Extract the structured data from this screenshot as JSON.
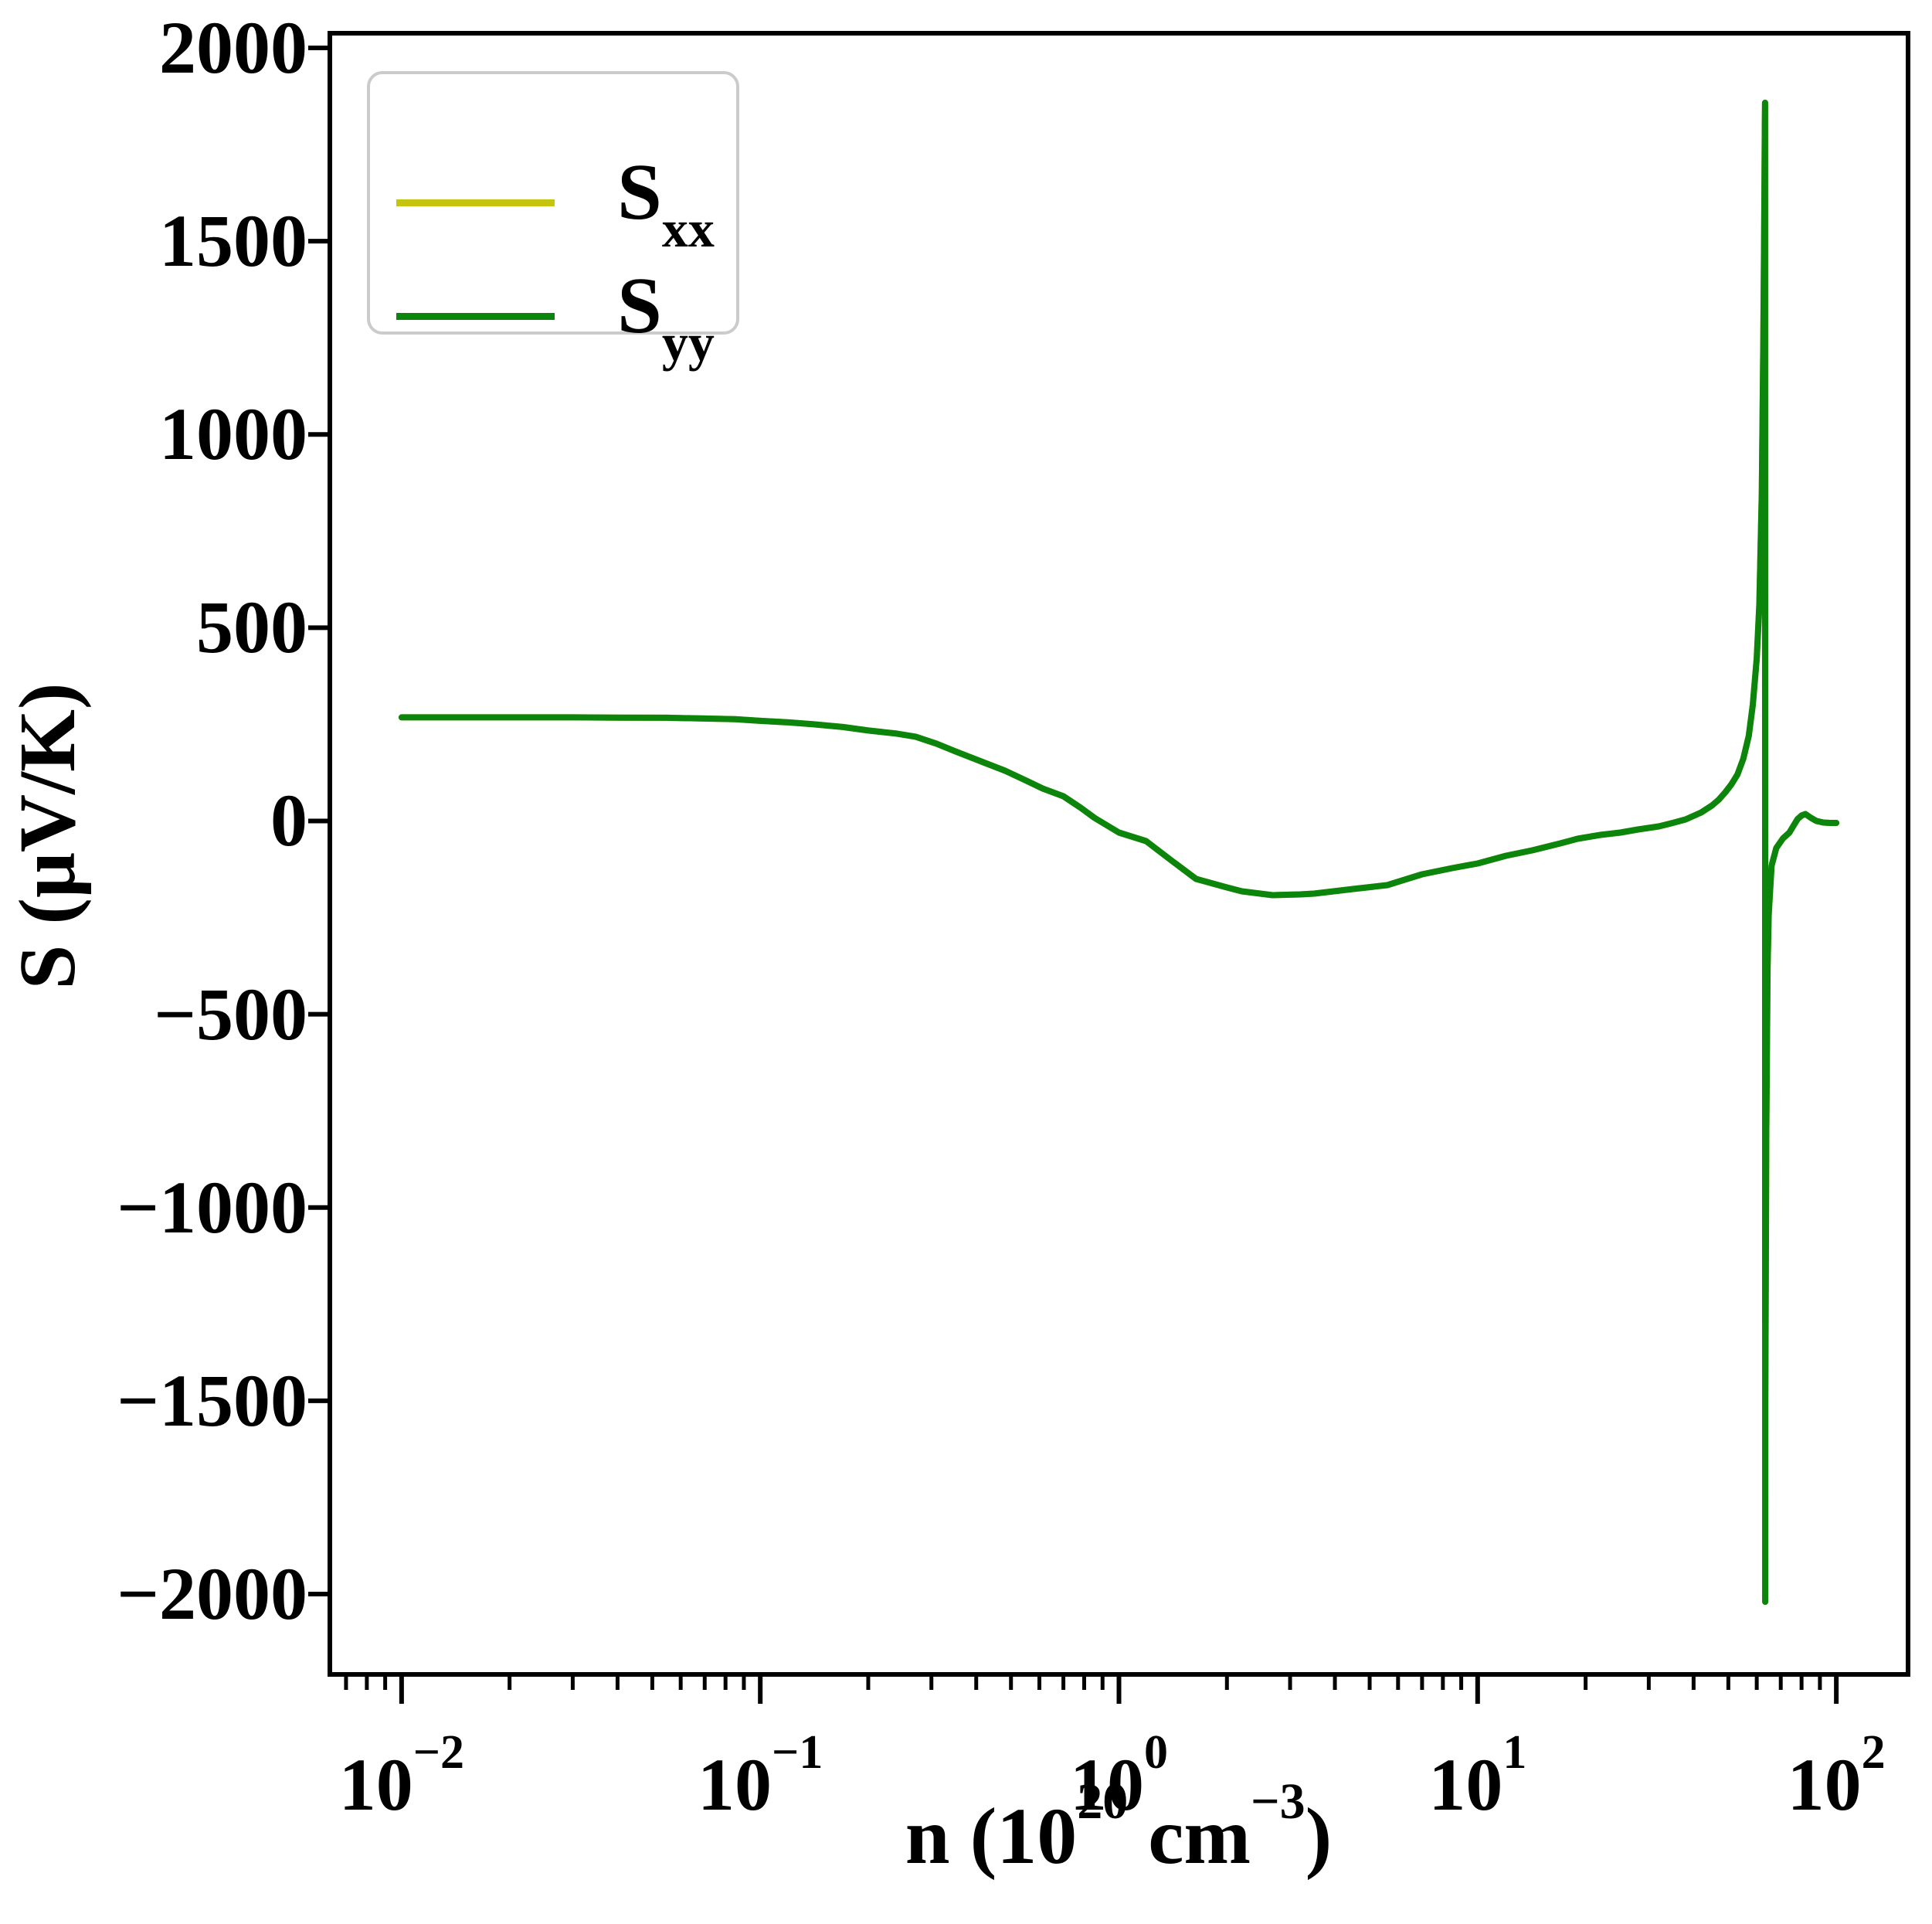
{
  "chart_data": {
    "type": "line",
    "title": "",
    "x_scale": "log",
    "xlim_log10": [
      -2.2,
      2.2
    ],
    "ylim": [
      -2208,
      2038
    ],
    "grid": false,
    "legend_position": "upper-left",
    "xlabel": {
      "prefix": "n (10",
      "sup1": "20",
      "mid": "cm",
      "sup2": "−3",
      "suffix": ")"
    },
    "ylabel": {
      "text": "S (μV/K)"
    },
    "x_ticks": [
      {
        "base": "10",
        "exp": "−2",
        "value": 0.01
      },
      {
        "base": "10",
        "exp": "−1",
        "value": 0.1
      },
      {
        "base": "10",
        "exp": "0",
        "value": 1
      },
      {
        "base": "10",
        "exp": "1",
        "value": 10
      },
      {
        "base": "10",
        "exp": "2",
        "value": 100
      }
    ],
    "x_minor_decades": [
      -3,
      -2,
      -1,
      0,
      1,
      2
    ],
    "y_ticks": [
      {
        "label": "2000",
        "value": 2000
      },
      {
        "label": "1500",
        "value": 1500
      },
      {
        "label": "1000",
        "value": 1000
      },
      {
        "label": "500",
        "value": 500
      },
      {
        "label": "0",
        "value": 0
      },
      {
        "label": "−500",
        "value": -500
      },
      {
        "label": "−1000",
        "value": -1000
      },
      {
        "label": "−1500",
        "value": -1500
      },
      {
        "label": "−2000",
        "value": -2000
      }
    ],
    "legend": [
      {
        "main": "S",
        "sub": "xx",
        "color": "#c4c411"
      },
      {
        "main": "S",
        "sub": "yy",
        "color": "#0c850c"
      }
    ],
    "series": [
      {
        "name": "Sxx",
        "color": "#c4c411",
        "note": "identical to Syy, completely hidden beneath it",
        "x": [
          0.01,
          0.013,
          0.017,
          0.022,
          0.03,
          0.04,
          0.055,
          0.07,
          0.085,
          0.1,
          0.12,
          0.141,
          0.17,
          0.2,
          0.24,
          0.271,
          0.31,
          0.35,
          0.41,
          0.481,
          0.55,
          0.613,
          0.7,
          0.78,
          0.855,
          1.0,
          1.19,
          1.4,
          1.64,
          2.0,
          2.2,
          2.68,
          3.2,
          3.5,
          4.5,
          5.6,
          7.0,
          8.5,
          10,
          12,
          14.2,
          17,
          19,
          22,
          25,
          28,
          32,
          35,
          38,
          42,
          45,
          47,
          49,
          51,
          53,
          55,
          57,
          58.5,
          60,
          61,
          62,
          62.6,
          63,
          63.2,
          63.3,
          63.35,
          63.4,
          63.8,
          64.3,
          64.8,
          66,
          68,
          71,
          74,
          76,
          78,
          80,
          82,
          85,
          88,
          92,
          96,
          100
        ],
        "y": [
          268,
          268,
          268,
          268,
          268,
          267.5,
          267,
          265,
          263.5,
          259,
          255,
          250,
          243,
          234,
          226,
          218,
          200,
          180,
          155,
          130,
          105,
          84,
          64,
          35,
          8,
          -30,
          -52,
          -102,
          -150,
          -172,
          -182,
          -192,
          -190,
          -188,
          -176,
          -166,
          -138,
          -122,
          -110,
          -90,
          -76,
          -58,
          -46,
          -36,
          -30,
          -22,
          -14,
          -5,
          4,
          22,
          40,
          55,
          74,
          95,
          120,
          160,
          220,
          300,
          420,
          560,
          850,
          1250,
          1600,
          1800,
          1858,
          -2020,
          -1500,
          -800,
          -380,
          -242,
          -116,
          -70,
          -45,
          -30,
          -12,
          5,
          14,
          18,
          8,
          0,
          -4,
          -5,
          -5
        ]
      },
      {
        "name": "Syy",
        "color": "#0c850c",
        "x": [
          0.01,
          0.013,
          0.017,
          0.022,
          0.03,
          0.04,
          0.055,
          0.07,
          0.085,
          0.1,
          0.12,
          0.141,
          0.17,
          0.2,
          0.24,
          0.271,
          0.31,
          0.35,
          0.41,
          0.481,
          0.55,
          0.613,
          0.7,
          0.78,
          0.855,
          1.0,
          1.19,
          1.4,
          1.64,
          2.0,
          2.2,
          2.68,
          3.2,
          3.5,
          4.5,
          5.6,
          7.0,
          8.5,
          10,
          12,
          14.2,
          17,
          19,
          22,
          25,
          28,
          32,
          35,
          38,
          42,
          45,
          47,
          49,
          51,
          53,
          55,
          57,
          58.5,
          60,
          61,
          62,
          62.6,
          63,
          63.2,
          63.3,
          63.35,
          63.4,
          63.8,
          64.3,
          64.8,
          66,
          68,
          71,
          74,
          76,
          78,
          80,
          82,
          85,
          88,
          92,
          96,
          100
        ],
        "y": [
          268,
          268,
          268,
          268,
          268,
          267.5,
          267,
          265,
          263.5,
          259,
          255,
          250,
          243,
          234,
          226,
          218,
          200,
          180,
          155,
          130,
          105,
          84,
          64,
          35,
          8,
          -30,
          -52,
          -102,
          -150,
          -172,
          -182,
          -192,
          -190,
          -188,
          -176,
          -166,
          -138,
          -122,
          -110,
          -90,
          -76,
          -58,
          -46,
          -36,
          -30,
          -22,
          -14,
          -5,
          4,
          22,
          40,
          55,
          74,
          95,
          120,
          160,
          220,
          300,
          420,
          560,
          850,
          1250,
          1600,
          1800,
          1858,
          -2020,
          -1500,
          -800,
          -380,
          -242,
          -116,
          -70,
          -45,
          -30,
          -12,
          5,
          14,
          18,
          8,
          0,
          -4,
          -5,
          -5
        ]
      }
    ]
  }
}
